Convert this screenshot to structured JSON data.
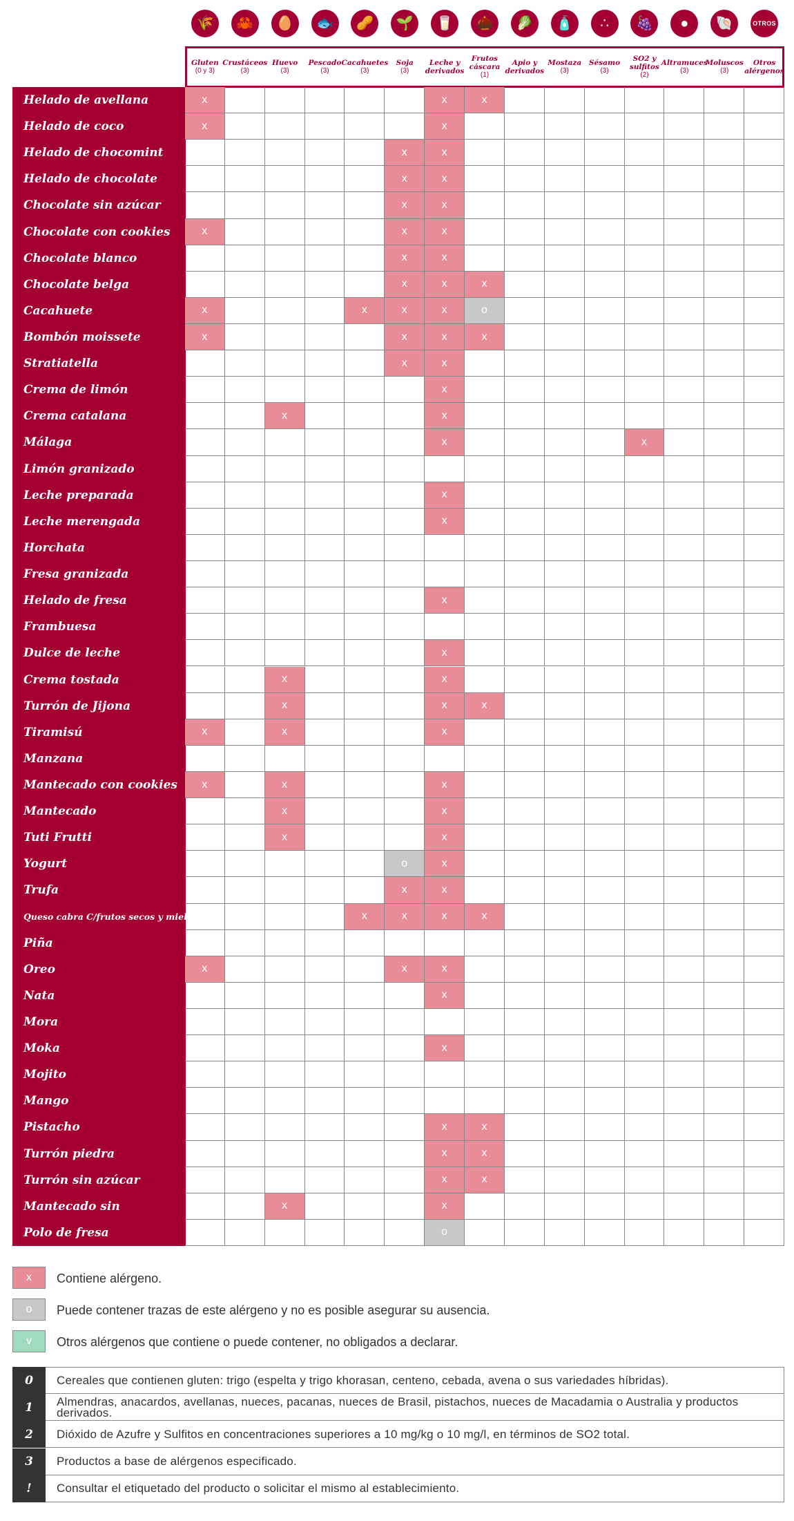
{
  "allergens": [
    {
      "key": "gluten",
      "label": "Gluten",
      "sub": "(0 y 3)",
      "icon": "wheat-icon",
      "glyph": "🌾"
    },
    {
      "key": "crustaceos",
      "label": "Crustáceos",
      "sub": "(3)",
      "icon": "crab-icon",
      "glyph": "🦀"
    },
    {
      "key": "huevo",
      "label": "Huevo",
      "sub": "(3)",
      "icon": "egg-icon",
      "glyph": "🥚"
    },
    {
      "key": "pescado",
      "label": "Pescado",
      "sub": "(3)",
      "icon": "fish-icon",
      "glyph": "🐟"
    },
    {
      "key": "cacahuetes",
      "label": "Cacahuetes",
      "sub": "(3)",
      "icon": "peanut-icon",
      "glyph": "🥜"
    },
    {
      "key": "soja",
      "label": "Soja",
      "sub": "(3)",
      "icon": "soy-icon",
      "glyph": "🌱"
    },
    {
      "key": "leche",
      "label": "Leche y derivados",
      "sub": "",
      "icon": "milk-icon",
      "glyph": "🥛"
    },
    {
      "key": "frutos",
      "label": "Frutos cáscara",
      "sub": "(1)",
      "icon": "nut-icon",
      "glyph": "🌰"
    },
    {
      "key": "apio",
      "label": "Apio y derivados",
      "sub": "",
      "icon": "celery-icon",
      "glyph": "🥬"
    },
    {
      "key": "mostaza",
      "label": "Mostaza",
      "sub": "(3)",
      "icon": "mustard-icon",
      "glyph": "🧴"
    },
    {
      "key": "sesamo",
      "label": "Sésamo",
      "sub": "(3)",
      "icon": "sesame-icon",
      "glyph": "∴"
    },
    {
      "key": "so2",
      "label": "SO2 y sulfitos",
      "sub": "(2)",
      "icon": "sulfite-icon",
      "glyph": "🍇"
    },
    {
      "key": "altramuces",
      "label": "Altramuces",
      "sub": "(3)",
      "icon": "lupin-icon",
      "glyph": "●"
    },
    {
      "key": "moluscos",
      "label": "Moluscos",
      "sub": "(3)",
      "icon": "shell-icon",
      "glyph": "🐚"
    },
    {
      "key": "otros",
      "label": "Otros alérgenos",
      "sub": "",
      "icon": "otros-icon",
      "glyph": "OTROS"
    }
  ],
  "products": [
    {
      "name": "Helado de avellana",
      "marks": {
        "0": "x",
        "6": "x",
        "7": "x"
      }
    },
    {
      "name": "Helado de coco",
      "marks": {
        "0": "x",
        "6": "x"
      }
    },
    {
      "name": "Helado de chocomint",
      "marks": {
        "5": "x",
        "6": "x"
      }
    },
    {
      "name": "Helado de chocolate",
      "marks": {
        "5": "x",
        "6": "x"
      }
    },
    {
      "name": "Chocolate sin azúcar",
      "marks": {
        "5": "x",
        "6": "x"
      }
    },
    {
      "name": "Chocolate con cookies",
      "marks": {
        "0": "x",
        "5": "x",
        "6": "x"
      }
    },
    {
      "name": "Chocolate blanco",
      "marks": {
        "5": "x",
        "6": "x"
      }
    },
    {
      "name": "Chocolate belga",
      "marks": {
        "5": "x",
        "6": "x",
        "7": "x"
      }
    },
    {
      "name": "Cacahuete",
      "marks": {
        "0": "x",
        "4": "x",
        "5": "x",
        "6": "x",
        "7": "o"
      }
    },
    {
      "name": "Bombón moissete",
      "marks": {
        "0": "x",
        "5": "x",
        "6": "x",
        "7": "x"
      }
    },
    {
      "name": "Stratiatella",
      "marks": {
        "5": "x",
        "6": "x"
      }
    },
    {
      "name": "Crema de limón",
      "marks": {
        "6": "x"
      }
    },
    {
      "name": "Crema catalana",
      "marks": {
        "2": "x",
        "6": "x"
      }
    },
    {
      "name": "Málaga",
      "marks": {
        "6": "x",
        "11": "x"
      }
    },
    {
      "name": "Limón granizado",
      "marks": {}
    },
    {
      "name": "Leche preparada",
      "marks": {
        "6": "x"
      }
    },
    {
      "name": "Leche merengada",
      "marks": {
        "6": "x"
      }
    },
    {
      "name": "Horchata",
      "marks": {}
    },
    {
      "name": "Fresa granizada",
      "marks": {}
    },
    {
      "name": "Helado de fresa",
      "marks": {
        "6": "x"
      }
    },
    {
      "name": "Frambuesa",
      "marks": {}
    },
    {
      "name": "Dulce de leche",
      "marks": {
        "6": "x"
      }
    },
    {
      "name": "Crema tostada",
      "marks": {
        "2": "x",
        "6": "x"
      }
    },
    {
      "name": "Turrón de Jijona",
      "marks": {
        "2": "x",
        "6": "x",
        "7": "x"
      }
    },
    {
      "name": "Tiramisú",
      "marks": {
        "0": "x",
        "2": "x",
        "6": "x"
      }
    },
    {
      "name": "Manzana",
      "marks": {}
    },
    {
      "name": "Mantecado con cookies",
      "marks": {
        "0": "x",
        "2": "x",
        "6": "x"
      }
    },
    {
      "name": "Mantecado",
      "marks": {
        "2": "x",
        "6": "x"
      }
    },
    {
      "name": "Tuti Frutti",
      "marks": {
        "2": "x",
        "6": "x"
      }
    },
    {
      "name": "Yogurt",
      "marks": {
        "5": "o",
        "6": "x"
      }
    },
    {
      "name": "Trufa",
      "marks": {
        "5": "x",
        "6": "x"
      }
    },
    {
      "name": "Queso cabra C/frutos secos y miel",
      "small": true,
      "marks": {
        "4": "x",
        "5": "x",
        "6": "x",
        "7": "x"
      }
    },
    {
      "name": "Piña",
      "marks": {}
    },
    {
      "name": "Oreo",
      "marks": {
        "0": "x",
        "5": "x",
        "6": "x"
      }
    },
    {
      "name": "Nata",
      "marks": {
        "6": "x"
      }
    },
    {
      "name": "Mora",
      "marks": {}
    },
    {
      "name": "Moka",
      "marks": {
        "6": "x"
      }
    },
    {
      "name": "Mojito",
      "marks": {}
    },
    {
      "name": "Mango",
      "marks": {}
    },
    {
      "name": "Pistacho",
      "marks": {
        "6": "x",
        "7": "x"
      }
    },
    {
      "name": "Turrón piedra",
      "marks": {
        "6": "x",
        "7": "x"
      }
    },
    {
      "name": "Turrón sin azúcar",
      "marks": {
        "6": "x",
        "7": "x"
      }
    },
    {
      "name": "Mantecado sin",
      "marks": {
        "2": "x",
        "6": "x"
      }
    },
    {
      "name": "Polo de fresa",
      "marks": {
        "6": "o"
      }
    }
  ],
  "legend": [
    {
      "symbol": "x",
      "text": "Contiene alérgeno.",
      "color": "#e88c97"
    },
    {
      "symbol": "o",
      "text": "Puede contener trazas de este alérgeno y no es posible asegurar su ausencia.",
      "color": "#c8c8c8"
    },
    {
      "symbol": "v",
      "text": "Otros alérgenos que contiene o puede contener, no obligados a declarar.",
      "color": "#9fdcbf"
    }
  ],
  "notes": [
    {
      "num": "0",
      "text": "Cereales que contienen gluten: trigo (espelta y trigo khorasan, centeno, cebada, avena o sus variedades híbridas)."
    },
    {
      "num": "1",
      "text": "Almendras, anacardos, avellanas, nueces, pacanas, nueces de Brasil, pistachos, nueces de Macadamia o Australia y productos derivados."
    },
    {
      "num": "2",
      "text": "Dióxido de Azufre y Sulfitos en concentraciones superiores a 10 mg/kg o 10 mg/l, en términos de SO2 total."
    },
    {
      "num": "3",
      "text": "Productos a base de alérgenos especificado."
    },
    {
      "num": "!",
      "text": "Consultar el etiquetado del producto o solicitar el mismo al establecimiento."
    }
  ],
  "colors": {
    "brand": "#a50034",
    "contains": "#e88c97",
    "traces": "#c8c8c8",
    "others": "#9fdcbf",
    "note_bg": "#333333"
  }
}
